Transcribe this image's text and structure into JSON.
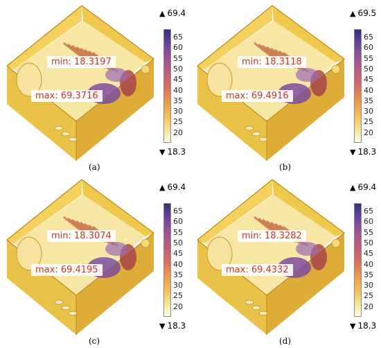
{
  "panels": [
    {
      "caption": "(a)",
      "min": "min: 18.3197",
      "max": "max: 69.3716",
      "cb_top": "69.4",
      "cb_bottom": "18.3"
    },
    {
      "caption": "(b)",
      "min": "min: 18.3118",
      "max": "max: 69.4916",
      "cb_top": "69.5",
      "cb_bottom": "18.3"
    },
    {
      "caption": "(c)",
      "min": "min: 18.3074",
      "max": "max: 69.4195",
      "cb_top": "69.4",
      "cb_bottom": "18.3"
    },
    {
      "caption": "(d)",
      "min": "min: 18.3282",
      "max": "max: 69.4332",
      "cb_top": "69.4",
      "cb_bottom": "18.3"
    }
  ],
  "colorbar_ticks": [
    "65",
    "60",
    "55",
    "50",
    "45",
    "40",
    "35",
    "30",
    "25",
    "20"
  ],
  "colors": {
    "housing": "#f2cf52",
    "housing_dark": "#d9a92e",
    "hot": "#6a3d98",
    "label_text": "#c0392b"
  }
}
